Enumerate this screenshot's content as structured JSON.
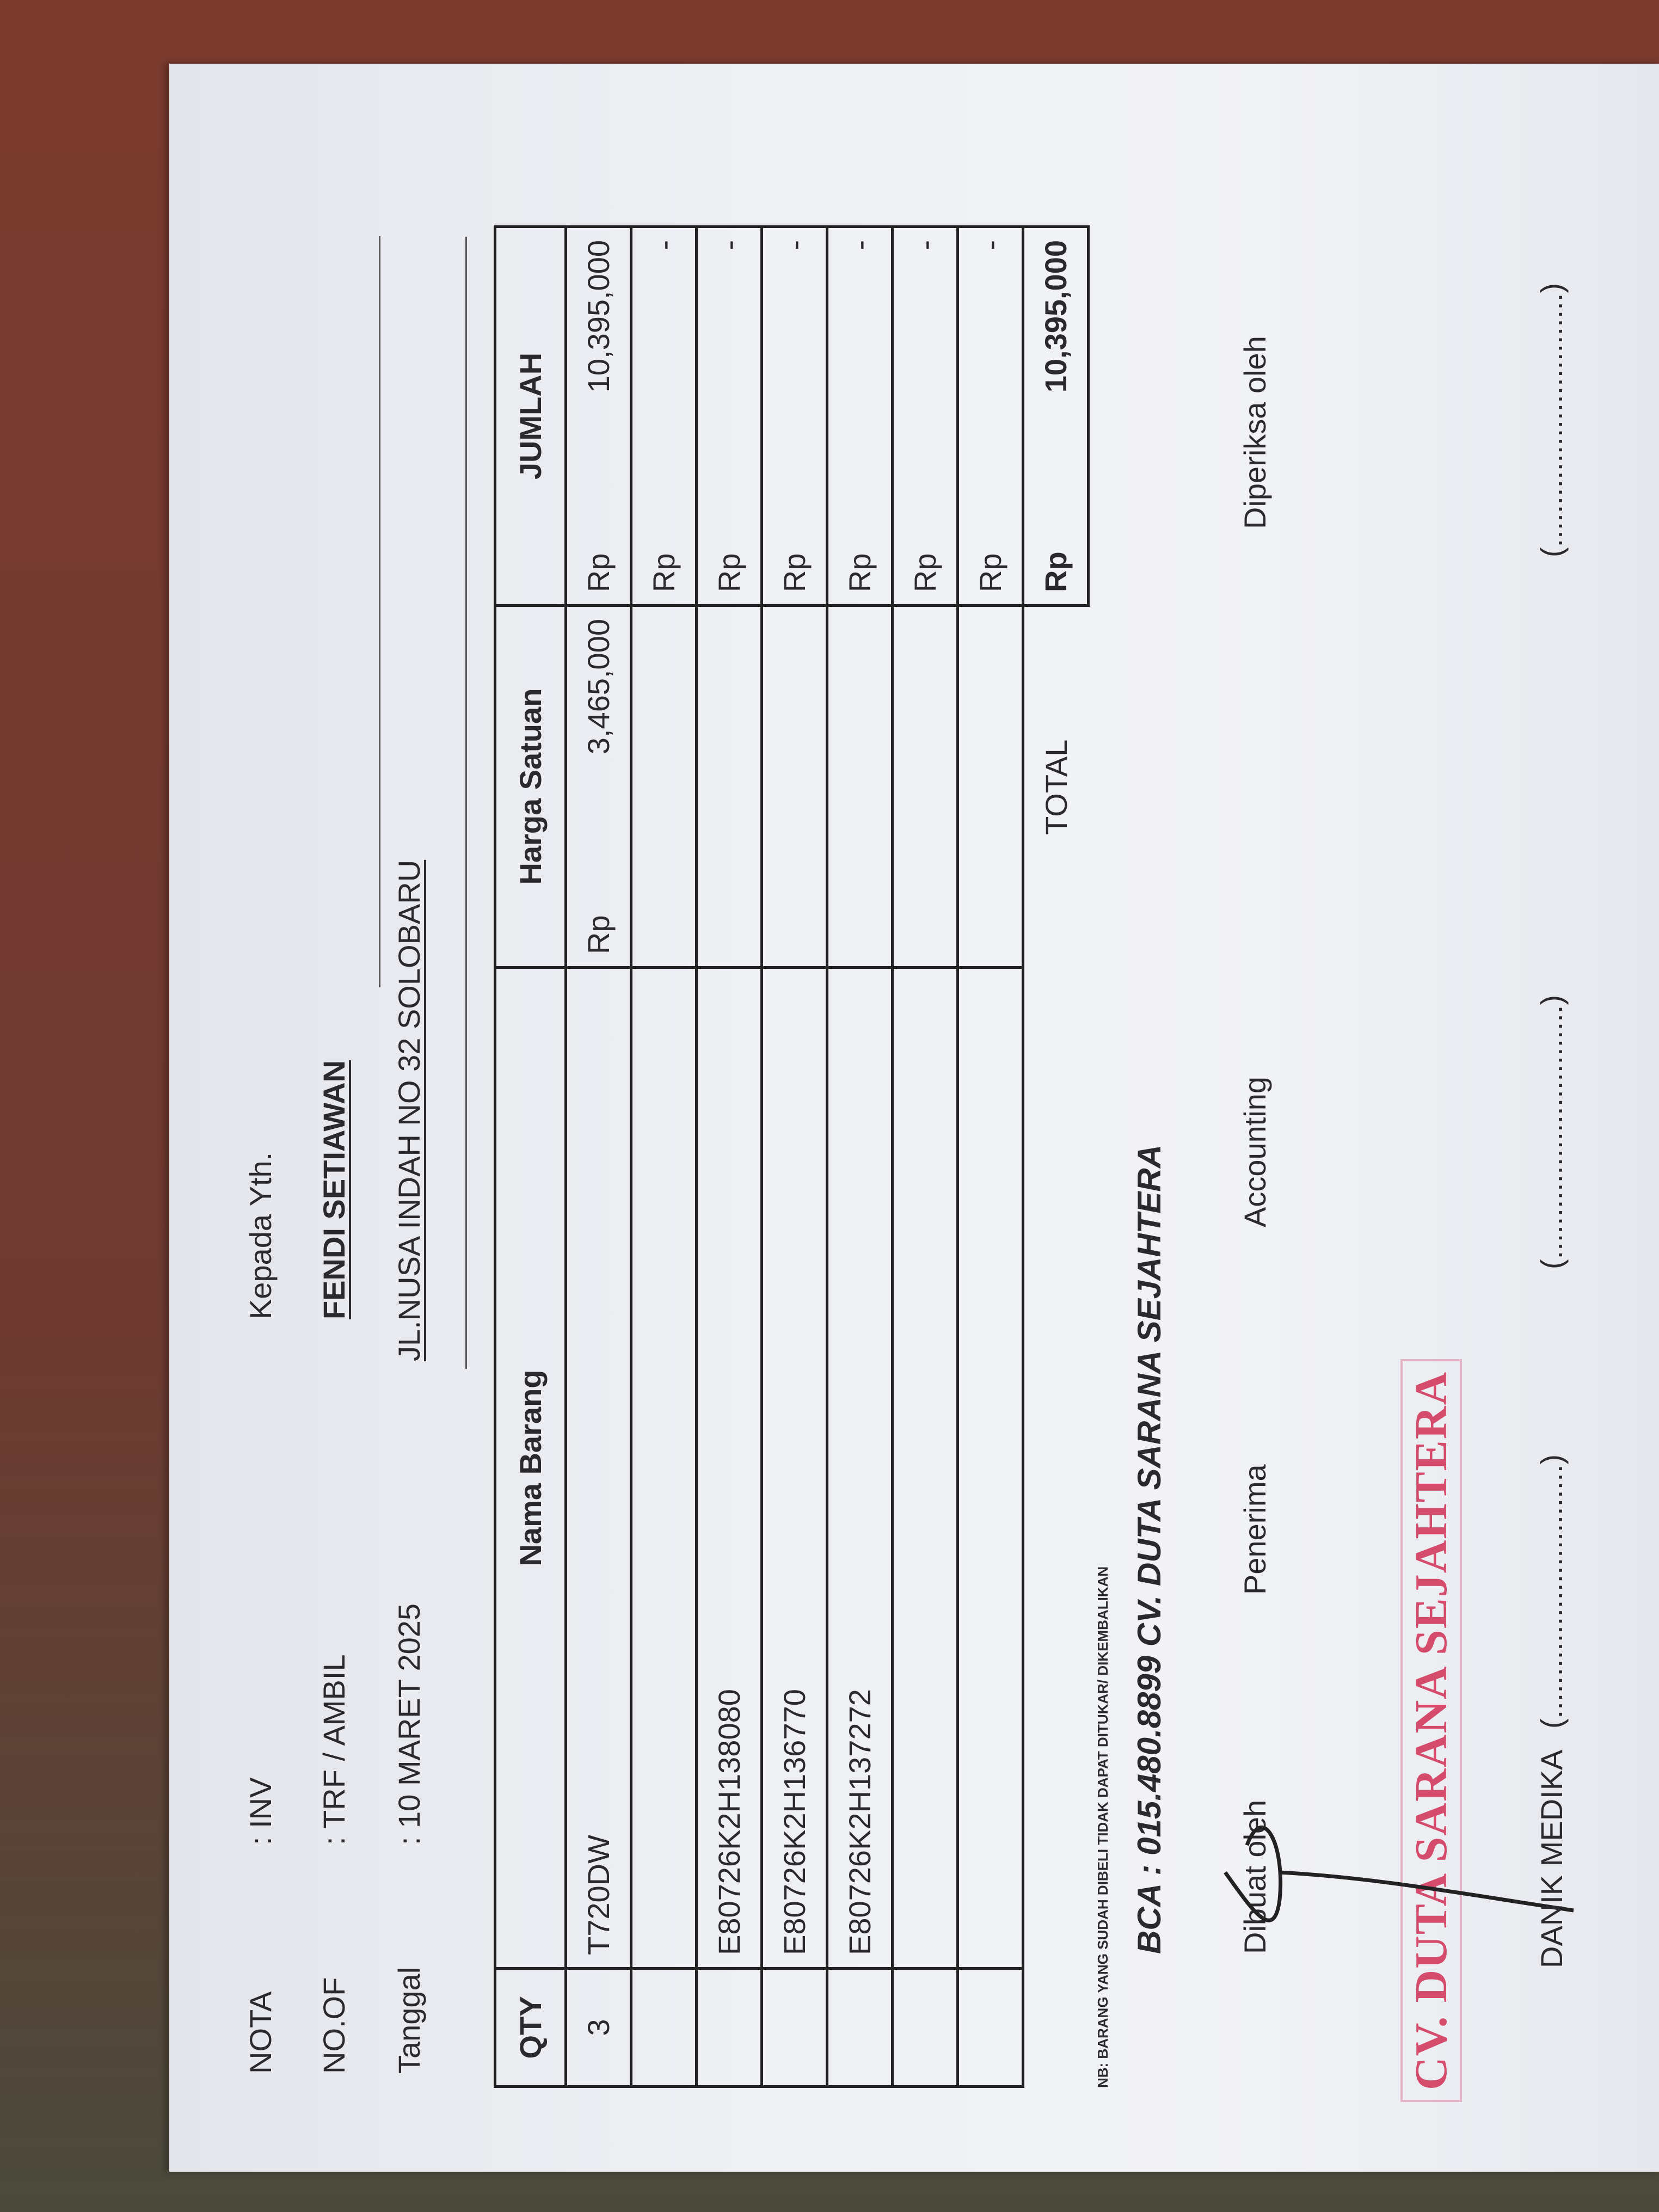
{
  "header": {
    "nota_label": "NOTA",
    "nota_value": ": INV",
    "noof_label": "NO.OF",
    "noof_value": ": TRF / AMBIL",
    "tanggal_label": "Tanggal",
    "tanggal_value": ": 10 MARET 2025"
  },
  "recipient": {
    "salutation": "Kepada Yth.",
    "name": "FENDI SETIAWAN",
    "address": "JL.NUSA INDAH NO 32 SOLOBARU"
  },
  "table": {
    "headers": [
      "QTY",
      "Nama Barang",
      "Harga Satuan",
      "JUMLAH"
    ],
    "rows": [
      {
        "qty": "3",
        "name": "T720DW",
        "price_cur": "Rp",
        "price": "3,465,000",
        "sum_cur": "Rp",
        "sum": "10,395,000"
      },
      {
        "qty": "",
        "name": "",
        "price_cur": "",
        "price": "",
        "sum_cur": "Rp",
        "sum": "-"
      },
      {
        "qty": "",
        "name": "E80726K2H138080",
        "price_cur": "",
        "price": "",
        "sum_cur": "Rp",
        "sum": "-"
      },
      {
        "qty": "",
        "name": "E80726K2H136770",
        "price_cur": "",
        "price": "",
        "sum_cur": "Rp",
        "sum": "-"
      },
      {
        "qty": "",
        "name": "E80726K2H137272",
        "price_cur": "",
        "price": "",
        "sum_cur": "Rp",
        "sum": "-"
      },
      {
        "qty": "",
        "name": "",
        "price_cur": "",
        "price": "",
        "sum_cur": "Rp",
        "sum": "-"
      },
      {
        "qty": "",
        "name": "",
        "price_cur": "",
        "price": "",
        "sum_cur": "Rp",
        "sum": "-"
      }
    ],
    "total_label": "TOTAL",
    "total_cur": "Rp",
    "total_value": "10,395,000"
  },
  "notes": {
    "nb": "NB: BARANG YANG SUDAH DIBELI TIDAK DAPAT DITUKAR/ DIKEMBALIKAN",
    "bank": "BCA : 015.480.8899 CV. DUTA SARANA SEJAHTERA"
  },
  "signatures": {
    "labels": [
      "Dibuat oleh",
      "Penerima",
      "Accounting",
      "Diperiksa oleh"
    ],
    "names": [
      "DANIK MEDIKA",
      "(..............................)",
      "(..............................)",
      "(..............................)"
    ]
  },
  "stamp": {
    "text": "CV. DUTA SARANA SEJAHTERA",
    "color": "#d23a5e"
  }
}
